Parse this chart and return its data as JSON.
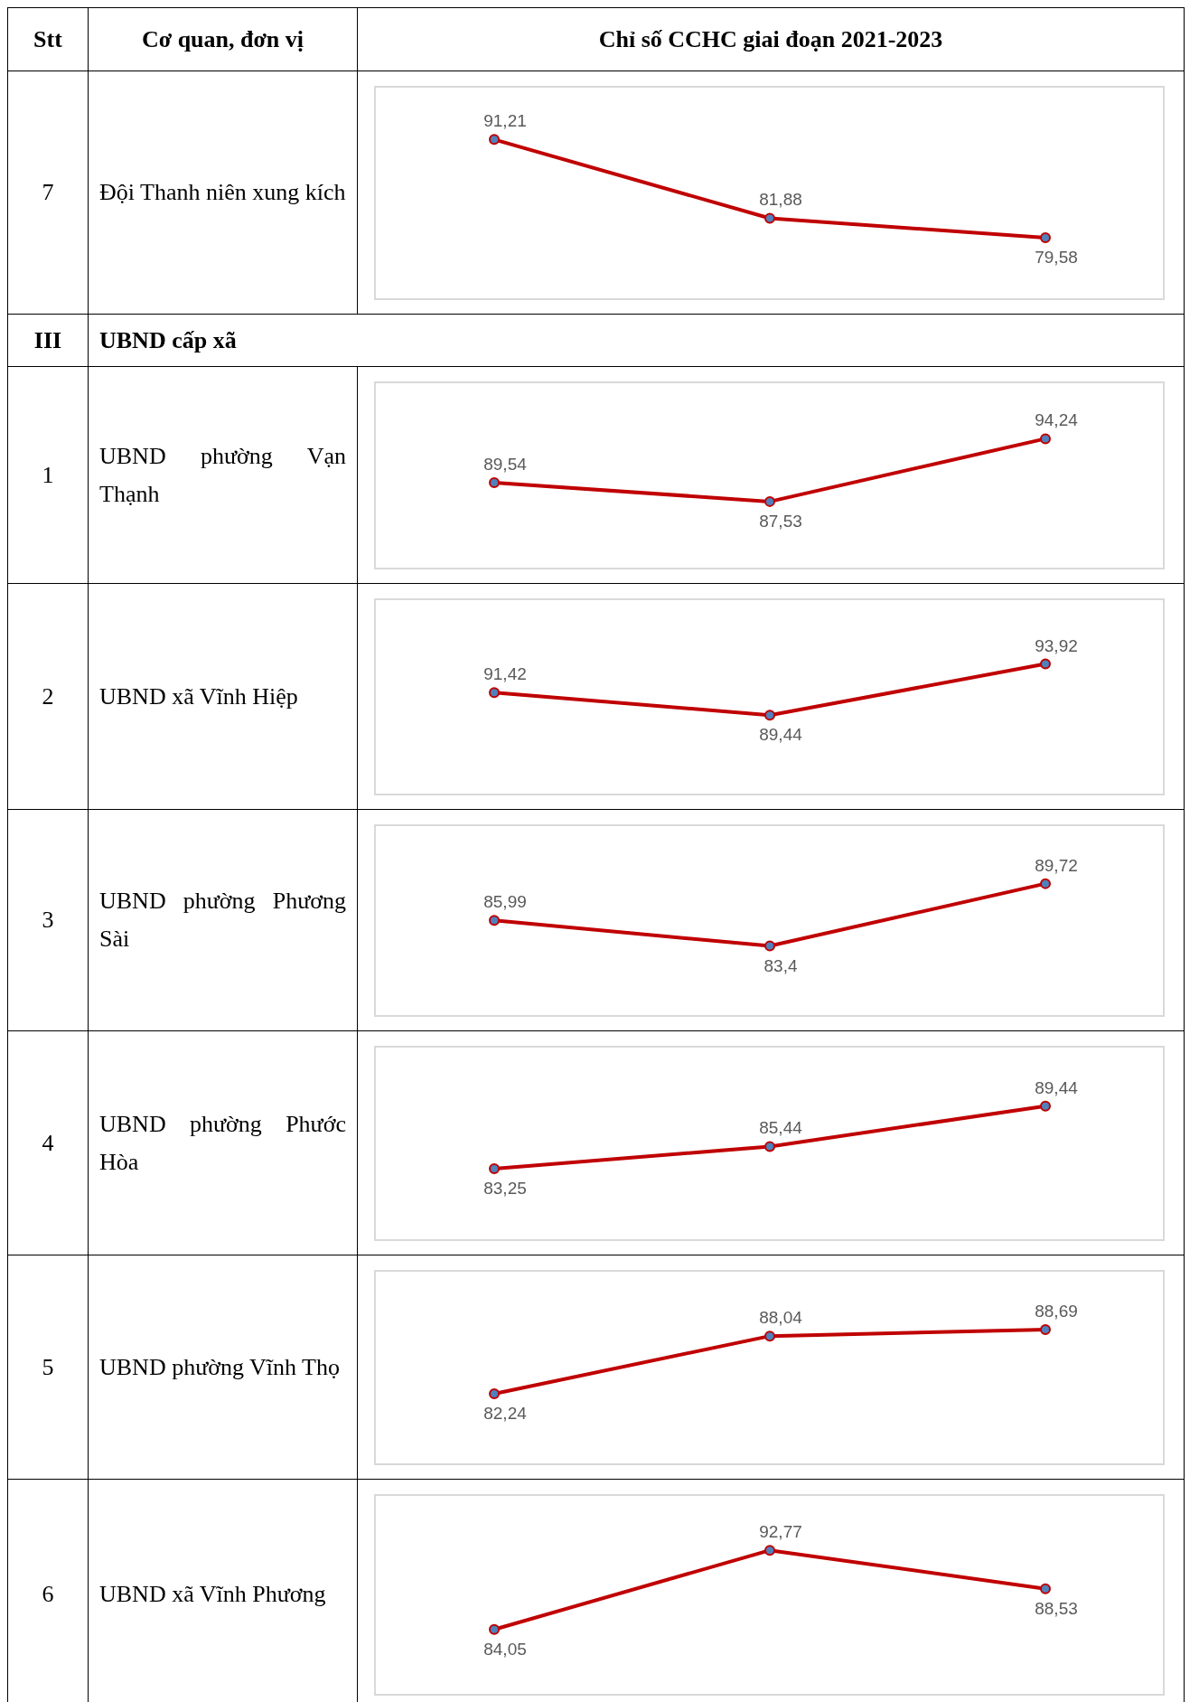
{
  "chart_data": [
    {
      "type": "line",
      "title": "Đội Thanh niên xung kích",
      "annotations": [
        "Stt",
        "Cơ quan, đơn vị",
        "Chỉ số CCHC giai đoạn 2021-2023",
        "7"
      ],
      "categories": [
        null,
        null,
        null
      ],
      "series": [
        {
          "color": "#c00000",
          "values": [
            91.21,
            81.88,
            79.58
          ],
          "value_labels": [
            "91,21",
            "81,88",
            "79,58"
          ]
        }
      ],
      "tick_labels": false,
      "marker": "circle",
      "line_style": "solid"
    },
    {
      "type": "line",
      "title": "UBND phường Vạn Thạnh",
      "annotations": [
        "III",
        "UBND cấp xã",
        "1"
      ],
      "categories": [
        null,
        null,
        null
      ],
      "series": [
        {
          "color": "#c00000",
          "values": [
            89.54,
            87.53,
            94.24
          ],
          "value_labels": [
            "89,54",
            "87,53",
            "94,24"
          ]
        }
      ],
      "tick_labels": false,
      "marker": "circle",
      "line_style": "solid"
    },
    {
      "type": "line",
      "title": "UBND xã Vĩnh Hiệp",
      "annotations": [
        "2"
      ],
      "categories": [
        null,
        null,
        null
      ],
      "series": [
        {
          "color": "#c00000",
          "values": [
            91.42,
            89.44,
            93.92
          ],
          "value_labels": [
            "91,42",
            "89,44",
            "93,92"
          ]
        }
      ],
      "tick_labels": false,
      "marker": "circle",
      "line_style": "solid"
    },
    {
      "type": "line",
      "title": "UBND phường Phương Sài",
      "annotations": [
        "3"
      ],
      "categories": [
        null,
        null,
        null
      ],
      "series": [
        {
          "color": "#c00000",
          "values": [
            85.99,
            83.4,
            89.72
          ],
          "value_labels": [
            "85,99",
            "83,4",
            "89,72"
          ]
        }
      ],
      "tick_labels": false,
      "marker": "circle",
      "line_style": "solid"
    },
    {
      "type": "line",
      "title": "UBND phường Phước Hòa",
      "annotations": [
        "4"
      ],
      "categories": [
        null,
        null,
        null
      ],
      "series": [
        {
          "color": "#c00000",
          "values": [
            83.25,
            85.44,
            89.44
          ],
          "value_labels": [
            "83,25",
            "85,44",
            "89,44"
          ]
        }
      ],
      "tick_labels": false,
      "marker": "circle",
      "line_style": "solid"
    },
    {
      "type": "line",
      "title": "UBND phường Vĩnh Thọ",
      "annotations": [
        "5"
      ],
      "categories": [
        null,
        null,
        null
      ],
      "series": [
        {
          "color": "#c00000",
          "values": [
            82.24,
            88.04,
            88.69
          ],
          "value_labels": [
            "82,24",
            "88,04",
            "88,69"
          ]
        }
      ],
      "tick_labels": false,
      "marker": "circle",
      "line_style": "solid"
    },
    {
      "type": "line",
      "title": "UBND xã Vĩnh Phương",
      "annotations": [
        "6"
      ],
      "categories": [
        null,
        null,
        null
      ],
      "series": [
        {
          "color": "#c00000",
          "values": [
            84.05,
            92.77,
            88.53
          ],
          "value_labels": [
            "84,05",
            "92,77",
            "88,53"
          ]
        }
      ],
      "tick_labels": false,
      "marker": "circle",
      "line_style": "solid"
    }
  ]
}
